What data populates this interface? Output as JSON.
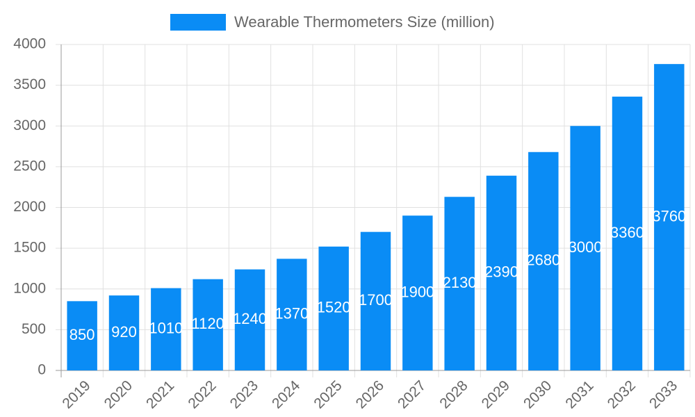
{
  "chart_data": {
    "type": "bar",
    "categories": [
      "2019",
      "2020",
      "2021",
      "2022",
      "2023",
      "2024",
      "2025",
      "2026",
      "2027",
      "2028",
      "2029",
      "2030",
      "2031",
      "2032",
      "2033"
    ],
    "series": [
      {
        "name": "Wearable Thermometers Size (million)",
        "color": "#0a8cf5",
        "values": [
          850,
          920,
          1010,
          1120,
          1240,
          1370,
          1520,
          1700,
          1900,
          2130,
          2390,
          2680,
          3000,
          3360,
          3760
        ]
      }
    ],
    "ylim": [
      0,
      4000
    ],
    "yticks": [
      0,
      500,
      1000,
      1500,
      2000,
      2500,
      3000,
      3500,
      4000
    ],
    "grid": true,
    "legend": "top"
  }
}
